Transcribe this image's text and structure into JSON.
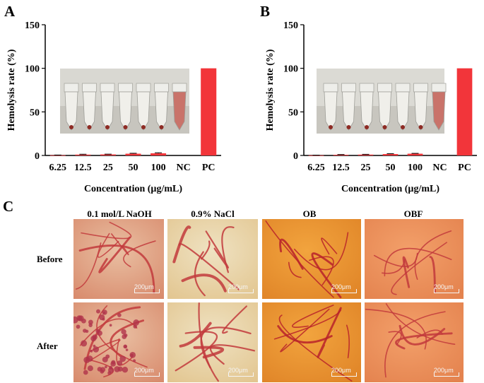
{
  "panels": {
    "a_label": "A",
    "b_label": "B",
    "c_label": "C"
  },
  "chart_data": [
    {
      "type": "bar",
      "panel": "A",
      "title": "",
      "ylabel": "Hemolysis rate (%)",
      "xlabel": "Concentration (µg/mL)",
      "categories": [
        "6.25",
        "12.5",
        "25",
        "50",
        "100",
        "NC",
        "PC"
      ],
      "values": [
        0.3,
        1.0,
        1.2,
        2.0,
        2.5,
        0,
        100
      ],
      "errors": [
        0.2,
        0.4,
        0.3,
        0.5,
        0.6,
        0,
        0
      ],
      "ylim": [
        0,
        150
      ],
      "yticks": [
        0,
        50,
        100,
        150
      ],
      "color": "#f2353a",
      "grid": false
    },
    {
      "type": "bar",
      "panel": "B",
      "title": "",
      "ylabel": "Hemolysis rate (%)",
      "xlabel": "Concentration (µg/mL)",
      "categories": [
        "6.25",
        "12.5",
        "25",
        "50",
        "100",
        "NC",
        "PC"
      ],
      "values": [
        0.2,
        0.8,
        1.0,
        1.6,
        2.0,
        0,
        100
      ],
      "errors": [
        0.1,
        0.3,
        0.3,
        0.4,
        0.4,
        0,
        0
      ],
      "ylim": [
        0,
        150
      ],
      "yticks": [
        0,
        50,
        100,
        150
      ],
      "color": "#f2353a",
      "grid": false
    }
  ],
  "cam_panel": {
    "columns": [
      "0.1 mol/L NaOH",
      "0.9% NaCl",
      "OB",
      "OBF"
    ],
    "rows": [
      "Before",
      "After"
    ],
    "scalebar": "200μm"
  }
}
